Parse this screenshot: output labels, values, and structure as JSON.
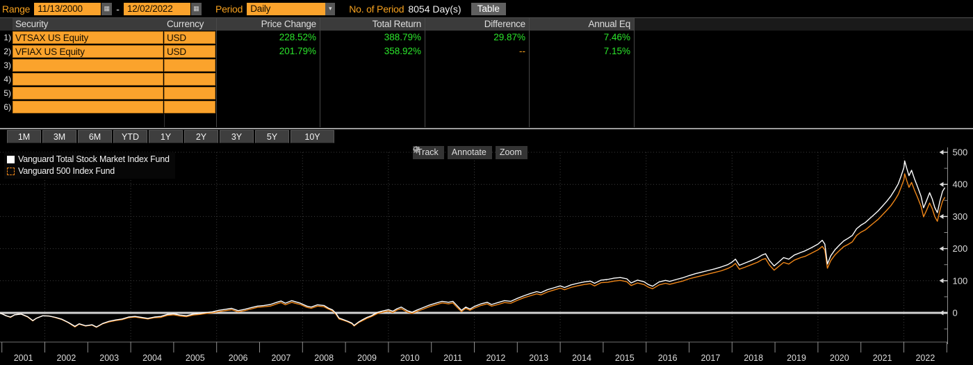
{
  "controls": {
    "range_label": "Range",
    "range_start": "11/13/2000",
    "range_separator": "-",
    "range_end": "12/02/2022",
    "period_label": "Period",
    "period_value": "Daily",
    "num_period_label": "No. of Period",
    "num_period_value": "8054 Day(s)",
    "table_button": "Table"
  },
  "table": {
    "headers": [
      "Security",
      "Currency",
      "Price Change",
      "Total Return",
      "Difference",
      "Annual Eq"
    ],
    "rows": [
      {
        "num": "1)",
        "security": "VTSAX US Equity",
        "currency": "USD",
        "price_change": "228.52%",
        "total_return": "388.79%",
        "difference": "29.87%",
        "annual_eq": "7.46%"
      },
      {
        "num": "2)",
        "security": "VFIAX US Equity",
        "currency": "USD",
        "price_change": "201.79%",
        "total_return": "358.92%",
        "difference": "--",
        "annual_eq": "7.15%"
      },
      {
        "num": "3)",
        "security": "",
        "currency": "",
        "price_change": "",
        "total_return": "",
        "difference": "",
        "annual_eq": ""
      },
      {
        "num": "4)",
        "security": "",
        "currency": "",
        "price_change": "",
        "total_return": "",
        "difference": "",
        "annual_eq": ""
      },
      {
        "num": "5)",
        "security": "",
        "currency": "",
        "price_change": "",
        "total_return": "",
        "difference": "",
        "annual_eq": ""
      },
      {
        "num": "6)",
        "security": "",
        "currency": "",
        "price_change": "",
        "total_return": "",
        "difference": "",
        "annual_eq": ""
      }
    ]
  },
  "range_buttons": [
    "1M",
    "3M",
    "6M",
    "YTD",
    "1Y",
    "2Y",
    "3Y",
    "5Y",
    "10Y"
  ],
  "chart_toolbar": {
    "track": "Track",
    "annotate": "Annotate",
    "zoom": "Zoom"
  },
  "colors": {
    "amber_field": "#fba32c",
    "amber_text": "#f6a11f",
    "green_value": "#2be52b",
    "series_white": "#ffffff",
    "series_orange": "#ef8618",
    "grid": "#3d3d3d",
    "axis": "#8f8f8f",
    "axis_text": "#dcdcdc",
    "zero_line": "#d4d4d4"
  },
  "chart_data": {
    "type": "line",
    "title": "",
    "xlabel": "",
    "ylabel": "",
    "legend_position": "top-left",
    "grid": true,
    "ylim": [
      -90,
      508
    ],
    "yticks": [
      0,
      100,
      200,
      300,
      400,
      500
    ],
    "yticks_minor": [
      -50,
      50,
      150,
      250,
      350,
      450
    ],
    "xtick_labels": [
      "2001",
      "2002",
      "2003",
      "2004",
      "2005",
      "2006",
      "2007",
      "2008",
      "2009",
      "2010",
      "2011",
      "2012",
      "2013",
      "2014",
      "2015",
      "2016",
      "2017",
      "2018",
      "2019",
      "2020",
      "2021",
      "2022"
    ],
    "x_start": 2000.92,
    "x_end": 2023.0,
    "x": [
      2000.92,
      2001.0,
      2001.1,
      2001.2,
      2001.3,
      2001.45,
      2001.6,
      2001.72,
      2001.8,
      2001.95,
      2002.1,
      2002.25,
      2002.4,
      2002.55,
      2002.7,
      2002.8,
      2002.95,
      2003.1,
      2003.2,
      2003.35,
      2003.5,
      2003.65,
      2003.8,
      2003.95,
      2004.1,
      2004.25,
      2004.4,
      2004.55,
      2004.7,
      2004.85,
      2005.0,
      2005.15,
      2005.3,
      2005.45,
      2005.6,
      2005.75,
      2005.9,
      2006.05,
      2006.2,
      2006.35,
      2006.5,
      2006.65,
      2006.8,
      2006.95,
      2007.1,
      2007.25,
      2007.4,
      2007.5,
      2007.6,
      2007.75,
      2007.85,
      2007.95,
      2008.1,
      2008.2,
      2008.35,
      2008.5,
      2008.6,
      2008.7,
      2008.78,
      2008.85,
      2008.95,
      2009.05,
      2009.15,
      2009.2,
      2009.3,
      2009.4,
      2009.5,
      2009.6,
      2009.75,
      2009.9,
      2010.0,
      2010.1,
      2010.2,
      2010.3,
      2010.45,
      2010.55,
      2010.65,
      2010.8,
      2010.95,
      2011.1,
      2011.25,
      2011.4,
      2011.5,
      2011.6,
      2011.7,
      2011.8,
      2011.9,
      2012.0,
      2012.15,
      2012.3,
      2012.4,
      2012.55,
      2012.7,
      2012.85,
      2013.0,
      2013.15,
      2013.3,
      2013.45,
      2013.55,
      2013.7,
      2013.85,
      2014.0,
      2014.1,
      2014.25,
      2014.4,
      2014.55,
      2014.7,
      2014.8,
      2014.95,
      2015.1,
      2015.25,
      2015.4,
      2015.55,
      2015.65,
      2015.8,
      2015.95,
      2016.05,
      2016.15,
      2016.3,
      2016.45,
      2016.55,
      2016.7,
      2016.85,
      2017.0,
      2017.15,
      2017.3,
      2017.45,
      2017.6,
      2017.75,
      2017.9,
      2018.0,
      2018.08,
      2018.17,
      2018.3,
      2018.45,
      2018.6,
      2018.7,
      2018.78,
      2018.87,
      2018.98,
      2019.1,
      2019.2,
      2019.32,
      2019.45,
      2019.6,
      2019.7,
      2019.85,
      2020.0,
      2020.1,
      2020.16,
      2020.22,
      2020.3,
      2020.4,
      2020.5,
      2020.6,
      2020.7,
      2020.8,
      2020.9,
      2021.0,
      2021.1,
      2021.2,
      2021.3,
      2021.4,
      2021.5,
      2021.6,
      2021.7,
      2021.8,
      2021.87,
      2021.93,
      2022.0,
      2022.02,
      2022.07,
      2022.12,
      2022.18,
      2022.25,
      2022.32,
      2022.4,
      2022.46,
      2022.53,
      2022.6,
      2022.66,
      2022.72,
      2022.78,
      2022.84,
      2022.9,
      2022.95
    ],
    "series": [
      {
        "name": "Vanguard Total Stock Market Index Fund",
        "ticker": "VTSAX US Equity",
        "color": "#ffffff",
        "swatch": "solid",
        "values": [
          0,
          -3,
          -9,
          -13,
          -6,
          -4,
          -12,
          -24,
          -17,
          -9,
          -10,
          -14,
          -20,
          -30,
          -42,
          -34,
          -40,
          -37,
          -44,
          -33,
          -26,
          -22,
          -19,
          -13,
          -11,
          -14,
          -17,
          -13,
          -11,
          -5,
          -3,
          -7,
          -9,
          -4,
          -2,
          1,
          3,
          8,
          11,
          14,
          7,
          11,
          16,
          21,
          23,
          26,
          33,
          37,
          30,
          38,
          34,
          30,
          21,
          18,
          25,
          23,
          15,
          9,
          -2,
          -16,
          -21,
          -26,
          -32,
          -39,
          -29,
          -21,
          -14,
          -9,
          2,
          7,
          10,
          5,
          13,
          18,
          6,
          2,
          8,
          16,
          24,
          30,
          36,
          33,
          36,
          22,
          8,
          18,
          12,
          20,
          28,
          33,
          26,
          32,
          38,
          36,
          45,
          53,
          60,
          66,
          63,
          72,
          78,
          84,
          79,
          87,
          92,
          96,
          99,
          92,
          102,
          104,
          108,
          110,
          106,
          93,
          102,
          97,
          88,
          83,
          96,
          101,
          98,
          104,
          109,
          116,
          122,
          127,
          132,
          137,
          143,
          150,
          158,
          167,
          148,
          155,
          163,
          172,
          180,
          184,
          163,
          146,
          160,
          172,
          167,
          180,
          188,
          193,
          203,
          214,
          226,
          214,
          152,
          178,
          197,
          211,
          224,
          232,
          241,
          262,
          273,
          281,
          293,
          305,
          317,
          332,
          347,
          364,
          385,
          402,
          424,
          452,
          473,
          449,
          427,
          444,
          416,
          392,
          363,
          327,
          350,
          374,
          355,
          328,
          312,
          348,
          378,
          389
        ]
      },
      {
        "name": "Vanguard 500 Index Fund",
        "ticker": "VFIAX US Equity",
        "color": "#ef8618",
        "swatch": "dashed",
        "values": [
          0,
          -3,
          -9,
          -14,
          -6,
          -4,
          -13,
          -25,
          -17,
          -9,
          -10,
          -15,
          -21,
          -31,
          -44,
          -35,
          -41,
          -38,
          -45,
          -34,
          -28,
          -24,
          -21,
          -15,
          -13,
          -16,
          -19,
          -15,
          -14,
          -8,
          -6,
          -10,
          -12,
          -7,
          -5,
          -2,
          0,
          4,
          7,
          10,
          3,
          7,
          12,
          17,
          19,
          21,
          28,
          32,
          25,
          33,
          29,
          26,
          17,
          14,
          21,
          19,
          12,
          6,
          -5,
          -19,
          -23,
          -28,
          -34,
          -41,
          -31,
          -24,
          -17,
          -12,
          -2,
          3,
          6,
          1,
          9,
          13,
          2,
          -2,
          4,
          11,
          19,
          25,
          31,
          28,
          31,
          17,
          4,
          14,
          8,
          15,
          23,
          28,
          21,
          26,
          32,
          30,
          39,
          47,
          53,
          59,
          56,
          65,
          71,
          77,
          72,
          79,
          84,
          88,
          91,
          84,
          94,
          95,
          99,
          101,
          97,
          85,
          93,
          88,
          80,
          75,
          87,
          92,
          89,
          94,
          99,
          106,
          111,
          116,
          121,
          126,
          131,
          138,
          145,
          154,
          136,
          142,
          150,
          158,
          166,
          169,
          149,
          133,
          146,
          157,
          152,
          164,
          172,
          176,
          186,
          196,
          207,
          196,
          139,
          163,
          181,
          194,
          206,
          213,
          221,
          241,
          251,
          258,
          269,
          280,
          291,
          305,
          319,
          334,
          353,
          369,
          389,
          414,
          433,
          411,
          391,
          406,
          381,
          359,
          332,
          299,
          320,
          342,
          325,
          300,
          285,
          319,
          347,
          359
        ]
      }
    ]
  }
}
